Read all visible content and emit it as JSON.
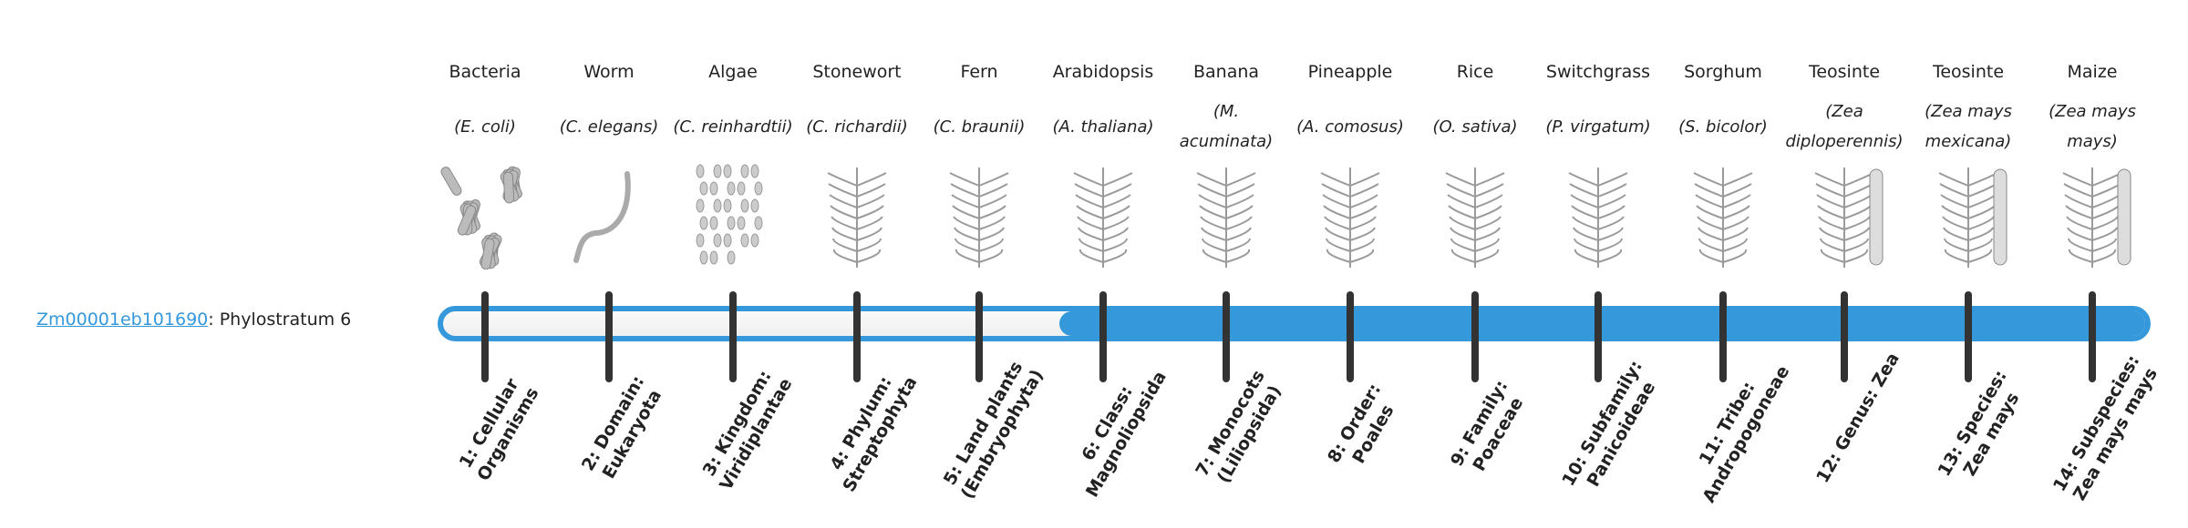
{
  "gene": {
    "id": "Zm00001eb101690",
    "suffix": ": Phylostratum 6"
  },
  "current_stratum": 6,
  "colors": {
    "accent": "#3498db",
    "tick": "#333333"
  },
  "strata": [
    {
      "common": "Bacteria",
      "sci": "(E. coli)",
      "label": "1: Cellular Organisms",
      "icon": "bacteria-illustration"
    },
    {
      "common": "Worm",
      "sci": "(C. elegans)",
      "label": "2: Domain: Eukaryota",
      "icon": "worm-illustration"
    },
    {
      "common": "Algae",
      "sci": "(C. reinhardtii)",
      "label": "3: Kingdom: Viridiplantae",
      "icon": "algae-illustration"
    },
    {
      "common": "Stonewort",
      "sci": "(C. richardii)",
      "label": "4: Phylum: Streptophyta",
      "icon": "stonewort-illustration"
    },
    {
      "common": "Fern",
      "sci": "(C. braunii)",
      "label": "5: Land plants (Embryophyta)",
      "icon": "fern-illustration"
    },
    {
      "common": "Arabidopsis",
      "sci": "(A. thaliana)",
      "label": "6: Class: Magnoliopsida",
      "icon": "arabidopsis-illustration"
    },
    {
      "common": "Banana",
      "sci": "(M. acuminata)",
      "label": "7: Monocots (Liliopsida)",
      "icon": "banana-illustration"
    },
    {
      "common": "Pineapple",
      "sci": "(A. comosus)",
      "label": "8: Order: Poales",
      "icon": "pineapple-illustration"
    },
    {
      "common": "Rice",
      "sci": "(O. sativa)",
      "label": "9: Family: Poaceae",
      "icon": "rice-illustration"
    },
    {
      "common": "Switchgrass",
      "sci": "(P. virgatum)",
      "label": "10: Subfamily: Panicoideae",
      "icon": "switchgrass-illustration"
    },
    {
      "common": "Sorghum",
      "sci": "(S. bicolor)",
      "label": "11: Tribe: Andropogoneae",
      "icon": "sorghum-illustration"
    },
    {
      "common": "Teosinte",
      "sci": "(Zea diploperennis)",
      "label": "12: Genus: Zea",
      "icon": "teosinte-illustration"
    },
    {
      "common": "Teosinte",
      "sci": "(Zea mays mexicana)",
      "label": "13: Species: Zea mays",
      "icon": "teosinte-mexicana-illustration"
    },
    {
      "common": "Maize",
      "sci": "(Zea mays mays)",
      "label": "14: Subspecies: Zea mays mays",
      "icon": "maize-illustration"
    }
  ]
}
